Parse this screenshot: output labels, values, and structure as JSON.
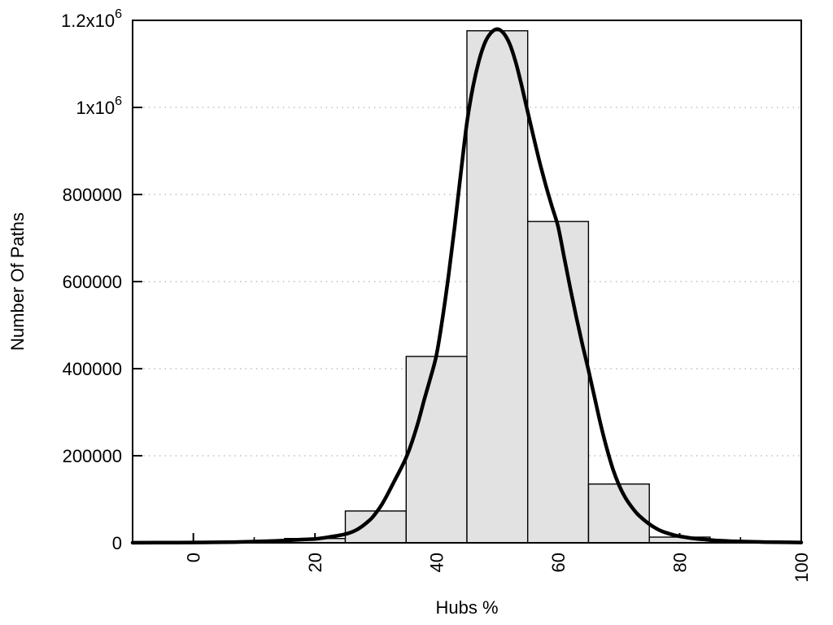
{
  "chart_data": {
    "type": "bar",
    "subtype": "histogram-with-fit-curve",
    "title": "",
    "xlabel": "Hubs %",
    "ylabel": "Number Of Paths",
    "xlim": [
      -10,
      100
    ],
    "ylim": [
      0,
      1200000
    ],
    "x_major_ticks": [
      0,
      20,
      40,
      60,
      80,
      100
    ],
    "x_minor_ticks": [
      10,
      30,
      50,
      70,
      90
    ],
    "x_tick_label_rotation_deg": -90,
    "y_ticks": [
      {
        "value": 0,
        "label": "0"
      },
      {
        "value": 200000,
        "label": "200000"
      },
      {
        "value": 400000,
        "label": "400000"
      },
      {
        "value": 600000,
        "label": "600000"
      },
      {
        "value": 800000,
        "label": "800000"
      },
      {
        "value": 1000000,
        "label": "1x10^6"
      },
      {
        "value": 1200000,
        "label": "1.2x10^6"
      }
    ],
    "grid": {
      "horizontal": true,
      "vertical": false,
      "style": "dotted"
    },
    "legend": "none",
    "bars": [
      {
        "x_from": 15,
        "x_to": 25,
        "value": 10000
      },
      {
        "x_from": 25,
        "x_to": 35,
        "value": 73000
      },
      {
        "x_from": 35,
        "x_to": 45,
        "value": 428000
      },
      {
        "x_from": 45,
        "x_to": 55,
        "value": 1176000
      },
      {
        "x_from": 55,
        "x_to": 65,
        "value": 738000
      },
      {
        "x_from": 65,
        "x_to": 75,
        "value": 135000
      },
      {
        "x_from": 75,
        "x_to": 85,
        "value": 13000
      }
    ],
    "fit_curve": {
      "name": "bell-fit-line",
      "peak_x": 50,
      "peak_y": 1180000,
      "points": [
        [
          -10,
          200
        ],
        [
          -6,
          350
        ],
        [
          0,
          700
        ],
        [
          5,
          1400
        ],
        [
          10,
          2800
        ],
        [
          13,
          4200
        ],
        [
          15,
          5300
        ],
        [
          17,
          6800
        ],
        [
          20,
          9000
        ],
        [
          22,
          12500
        ],
        [
          25,
          20000
        ],
        [
          27,
          31000
        ],
        [
          29,
          52000
        ],
        [
          30,
          68000
        ],
        [
          31,
          88000
        ],
        [
          32,
          113000
        ],
        [
          33,
          140000
        ],
        [
          34,
          167000
        ],
        [
          35,
          196000
        ],
        [
          36,
          233000
        ],
        [
          37,
          278000
        ],
        [
          38,
          330000
        ],
        [
          39,
          379000
        ],
        [
          40,
          432000
        ],
        [
          41,
          517000
        ],
        [
          42,
          617000
        ],
        [
          43,
          729000
        ],
        [
          44,
          849000
        ],
        [
          45,
          965000
        ],
        [
          46,
          1048000
        ],
        [
          47,
          1108000
        ],
        [
          48,
          1150000
        ],
        [
          49,
          1172000
        ],
        [
          50,
          1180000
        ],
        [
          51,
          1171000
        ],
        [
          52,
          1147000
        ],
        [
          53,
          1105000
        ],
        [
          54,
          1050000
        ],
        [
          55,
          990000
        ],
        [
          56,
          930000
        ],
        [
          57,
          872000
        ],
        [
          58,
          820000
        ],
        [
          59,
          772000
        ],
        [
          60,
          726000
        ],
        [
          61,
          655000
        ],
        [
          62,
          585000
        ],
        [
          63,
          518000
        ],
        [
          64,
          455000
        ],
        [
          65,
          396000
        ],
        [
          66,
          334000
        ],
        [
          67,
          272000
        ],
        [
          68,
          217000
        ],
        [
          69,
          170000
        ],
        [
          70,
          133000
        ],
        [
          71,
          105000
        ],
        [
          72,
          84000
        ],
        [
          73,
          67000
        ],
        [
          74,
          54000
        ],
        [
          75,
          43000
        ],
        [
          76,
          34000
        ],
        [
          77,
          27000
        ],
        [
          78,
          22000
        ],
        [
          79,
          18000
        ],
        [
          80,
          15000
        ],
        [
          82,
          10500
        ],
        [
          84,
          7600
        ],
        [
          86,
          5500
        ],
        [
          88,
          4000
        ],
        [
          90,
          3000
        ],
        [
          93,
          2000
        ],
        [
          96,
          1300
        ],
        [
          100,
          800
        ]
      ]
    },
    "colors": {
      "background": "#ffffff",
      "bar_fill": "#e2e2e2",
      "bar_stroke": "#000000",
      "curve": "#000000",
      "grid": "#bbbbbb",
      "axis": "#000000",
      "text": "#000000"
    }
  }
}
